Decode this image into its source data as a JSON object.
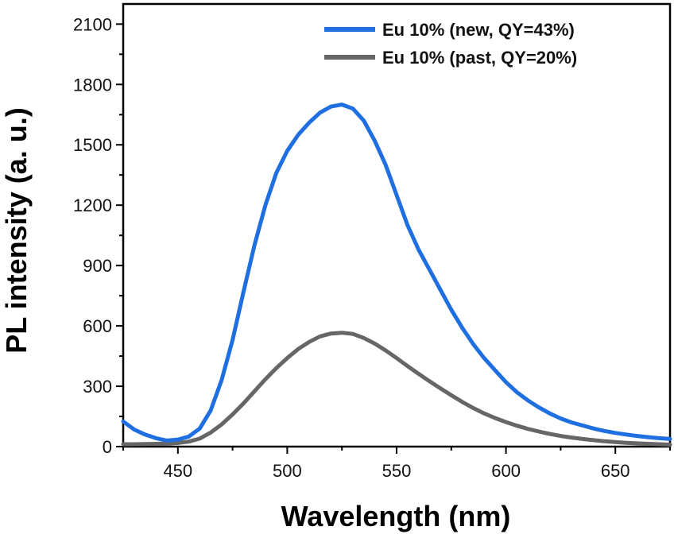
{
  "chart_data": {
    "type": "line",
    "title": "",
    "xlabel": "Wavelength (nm)",
    "ylabel": "PL intensity (a. u.)",
    "xlim": [
      425,
      675
    ],
    "ylim": [
      0,
      2200
    ],
    "xticks": [
      450,
      500,
      550,
      600,
      650
    ],
    "yticks": [
      0,
      300,
      600,
      900,
      1200,
      1500,
      1800,
      2100
    ],
    "legend_position": "top-right",
    "series": [
      {
        "name": "Eu 10% (new, QY=43%)",
        "color": "#1f6fe0",
        "x": [
          425,
          430,
          435,
          440,
          445,
          450,
          455,
          460,
          465,
          470,
          475,
          480,
          485,
          490,
          495,
          500,
          505,
          510,
          515,
          520,
          525,
          530,
          535,
          540,
          545,
          550,
          555,
          560,
          565,
          570,
          575,
          580,
          585,
          590,
          595,
          600,
          605,
          610,
          615,
          620,
          625,
          630,
          635,
          640,
          645,
          650,
          655,
          660,
          665,
          670,
          675
        ],
        "values": [
          125,
          85,
          60,
          42,
          30,
          35,
          50,
          90,
          180,
          330,
          530,
          770,
          1000,
          1200,
          1360,
          1470,
          1550,
          1610,
          1660,
          1690,
          1700,
          1680,
          1620,
          1520,
          1400,
          1250,
          1100,
          980,
          880,
          780,
          680,
          590,
          510,
          440,
          380,
          320,
          270,
          230,
          195,
          165,
          140,
          120,
          105,
          90,
          78,
          68,
          60,
          53,
          47,
          42,
          38
        ]
      },
      {
        "name": "Eu 10% (past, QY=20%)",
        "color": "#666666",
        "x": [
          425,
          430,
          435,
          440,
          445,
          450,
          455,
          460,
          465,
          470,
          475,
          480,
          485,
          490,
          495,
          500,
          505,
          510,
          515,
          520,
          525,
          530,
          535,
          540,
          545,
          550,
          555,
          560,
          565,
          570,
          575,
          580,
          585,
          590,
          595,
          600,
          605,
          610,
          615,
          620,
          625,
          630,
          635,
          640,
          645,
          650,
          655,
          660,
          665,
          670,
          675
        ],
        "values": [
          12,
          12,
          13,
          14,
          15,
          18,
          25,
          40,
          70,
          110,
          160,
          215,
          275,
          335,
          390,
          440,
          485,
          520,
          548,
          562,
          566,
          560,
          540,
          512,
          478,
          440,
          400,
          362,
          325,
          290,
          255,
          222,
          192,
          165,
          142,
          122,
          104,
          88,
          75,
          63,
          53,
          45,
          38,
          32,
          27,
          23,
          19,
          16,
          14,
          12,
          10
        ]
      }
    ]
  }
}
